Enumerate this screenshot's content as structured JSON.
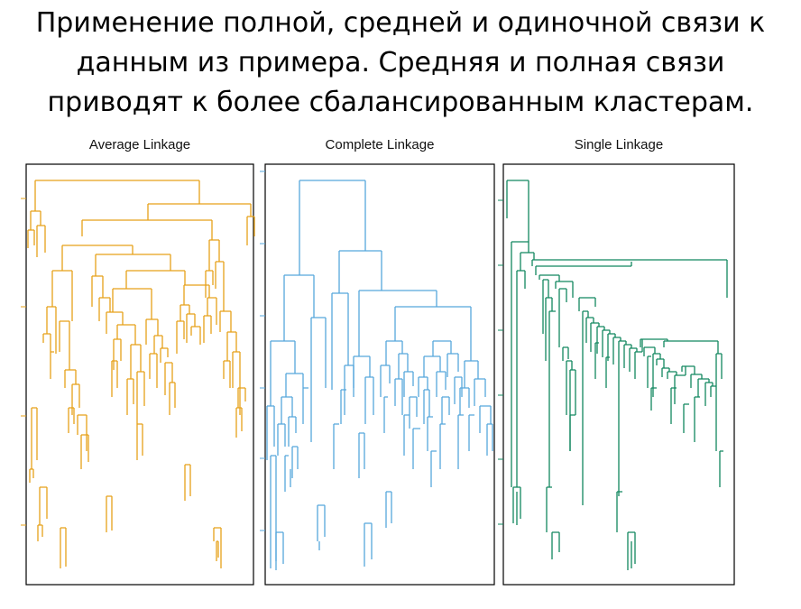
{
  "slide": {
    "title_lines": [
      "Применение полной, средней и одиночной связи к",
      "данным из примера. Средняя и полная связи",
      "приводят к более сбалансированным кластерам."
    ]
  },
  "panels": [
    {
      "title": "Average Linkage",
      "color": "#E6A119"
    },
    {
      "title": "Complete Linkage",
      "color": "#56A7DC"
    },
    {
      "title": "Single Linkage",
      "color": "#12875F"
    }
  ]
}
